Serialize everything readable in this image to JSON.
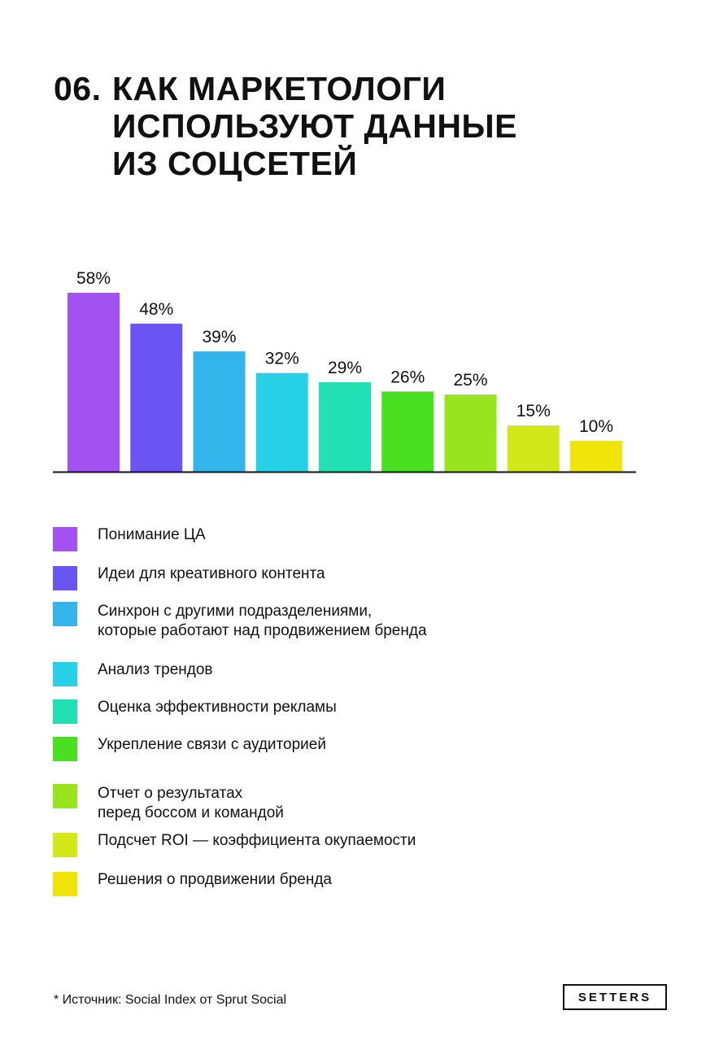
{
  "title": {
    "number": "06.",
    "lines": [
      "КАК МАРКЕТОЛОГИ",
      "ИСПОЛЬЗУЮТ ДАННЫЕ",
      "ИЗ СОЦСЕТЕЙ"
    ]
  },
  "chart_data": {
    "type": "bar",
    "categories": [
      "Понимание ЦА",
      "Идеи для креативного контента",
      "Синхрон с другими подразделениями,\nкоторые работают над продвижением бренда",
      "Анализ трендов",
      "Оценка эффективности рекламы",
      "Укрепление связи с аудиторией",
      "Отчет о результатах\nперед боссом и командой",
      "Подсчет ROI — коэффициента окупаемости",
      "Решения о продвижении бренда"
    ],
    "values": [
      58,
      48,
      39,
      32,
      29,
      26,
      25,
      15,
      10
    ],
    "value_labels": [
      "58%",
      "48%",
      "39%",
      "32%",
      "29%",
      "26%",
      "25%",
      "15%",
      "10%"
    ],
    "colors": [
      "#a352f2",
      "#6b55f2",
      "#33b4ea",
      "#26d0e6",
      "#22e0b4",
      "#48e020",
      "#98e41e",
      "#d2e81a",
      "#f0e40a"
    ],
    "ylim": [
      0,
      58
    ],
    "grid": false,
    "legend_position": "bottom"
  },
  "footer": {
    "source": "* Источник: Social Index от Sprut Social",
    "logo": "SETTERS"
  }
}
